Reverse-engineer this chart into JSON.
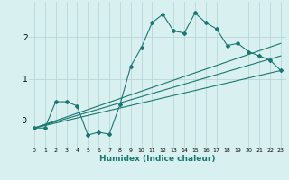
{
  "xlabel": "Humidex (Indice chaleur)",
  "bg_color": "#d8f0f0",
  "grid_color": "#b8d8d8",
  "line_color": "#1a7870",
  "xlim": [
    -0.5,
    23.5
  ],
  "ylim": [
    -0.65,
    2.85
  ],
  "yticks": [
    0,
    1,
    2
  ],
  "ytick_labels": [
    "-0",
    "1",
    "2"
  ],
  "xticks": [
    0,
    1,
    2,
    3,
    4,
    5,
    6,
    7,
    8,
    9,
    10,
    11,
    12,
    13,
    14,
    15,
    16,
    17,
    18,
    19,
    20,
    21,
    22,
    23
  ],
  "line1_x": [
    0,
    1,
    2,
    3,
    4,
    5,
    6,
    7,
    8,
    9,
    10,
    11,
    12,
    13,
    14,
    15,
    16,
    17,
    18,
    19,
    20,
    21,
    22,
    23
  ],
  "line1_y": [
    -0.18,
    -0.18,
    0.45,
    0.45,
    0.35,
    -0.35,
    -0.28,
    -0.33,
    0.38,
    1.3,
    1.75,
    2.35,
    2.55,
    2.15,
    2.1,
    2.58,
    2.35,
    2.2,
    1.8,
    1.85,
    1.65,
    1.55,
    1.45,
    1.2
  ],
  "line2_x": [
    0,
    23
  ],
  "line2_y": [
    -0.18,
    1.85
  ],
  "line3_x": [
    0,
    23
  ],
  "line3_y": [
    -0.18,
    1.2
  ],
  "line4_x": [
    0,
    23
  ],
  "line4_y": [
    -0.18,
    1.55
  ]
}
